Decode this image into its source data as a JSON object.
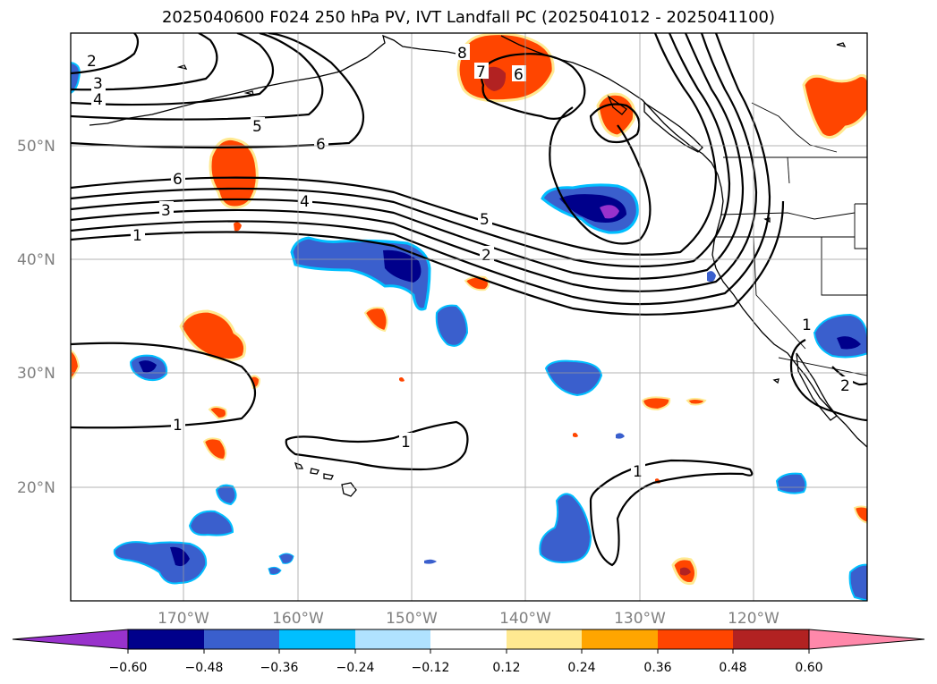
{
  "title": "2025040600 F024 250 hPa PV, IVT Landfall PC (2025041012 - 2025041100)",
  "map": {
    "lon_range": [
      -180,
      -110
    ],
    "lat_range": [
      10,
      60
    ],
    "lat_labels": [
      "50°N",
      "40°N",
      "30°N",
      "20°N"
    ],
    "lon_labels": [
      "170°W",
      "160°W",
      "150°W",
      "140°W",
      "130°W",
      "120°W"
    ],
    "pv_contour_labels": [
      "2",
      "3",
      "4",
      "5",
      "6",
      "6",
      "3",
      "4",
      "1",
      "5",
      "2",
      "8",
      "7",
      "6",
      "1",
      "1",
      "1",
      "1",
      "2"
    ]
  },
  "colorbar": {
    "tick_labels": [
      "−0.60",
      "−0.48",
      "−0.36",
      "−0.24",
      "−0.12",
      "0.12",
      "0.24",
      "0.36",
      "0.48",
      "0.60"
    ],
    "colors": [
      "#9932cc",
      "#00008b",
      "#3a5fcd",
      "#00bfff",
      "#b0e2ff",
      "#ffffff",
      "#ffe991",
      "#ffa500",
      "#ff4500",
      "#b22222",
      "#ff88aa"
    ]
  },
  "colors": {
    "neg_strong": "#00008b",
    "neg_mid": "#3a5fcd",
    "neg_light": "#00bfff",
    "pos_mid": "#ff4500",
    "pos_strong": "#b22222",
    "pos_light": "#ffe991",
    "purple": "#9932cc"
  }
}
